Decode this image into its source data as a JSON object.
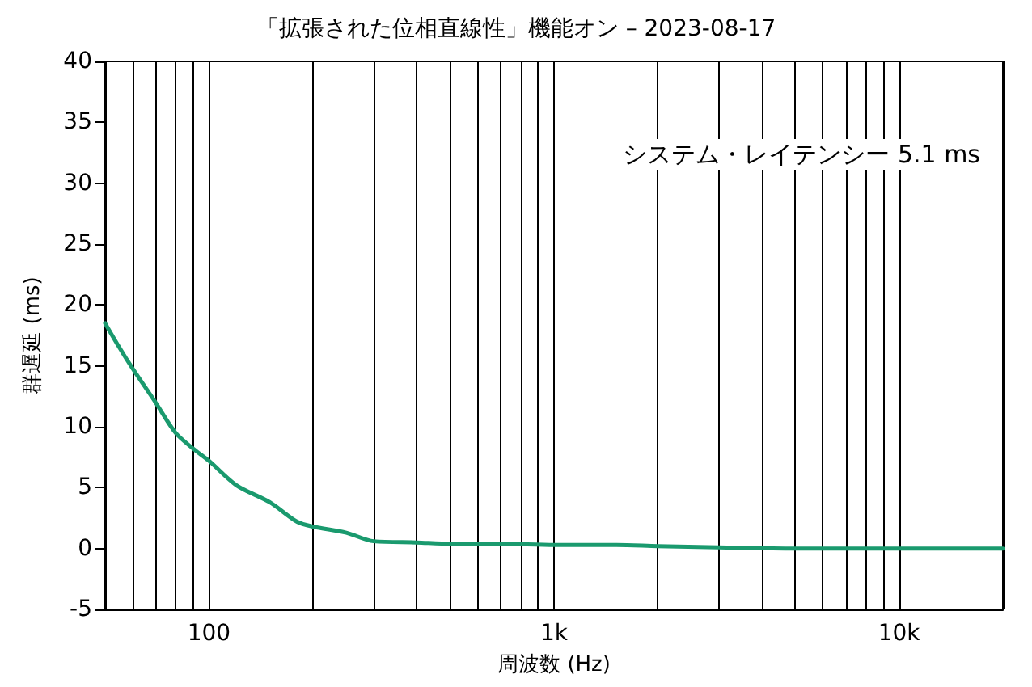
{
  "chart_data": {
    "type": "line",
    "title": "「拡張された位相直線性」機能オン – 2023-08-17",
    "xlabel": "周波数 (Hz)",
    "ylabel": "群遅延 (ms)",
    "annotations": [
      "システム・レイテンシー 5.1 ms"
    ],
    "x": [
      50,
      55,
      60,
      70,
      80,
      90,
      100,
      120,
      150,
      180,
      200,
      250,
      300,
      400,
      500,
      700,
      1000,
      1500,
      2000,
      3000,
      5000,
      7000,
      10000,
      15000,
      20000
    ],
    "series": [
      {
        "color": "#1a9a6e",
        "values": [
          18.5,
          16.5,
          14.8,
          12,
          9.5,
          8.2,
          7.2,
          5.2,
          3.8,
          2.2,
          1.8,
          1.3,
          0.6,
          0.5,
          0.4,
          0.4,
          0.3,
          0.3,
          0.2,
          0.1,
          0,
          0,
          0,
          0,
          0
        ]
      }
    ],
    "log": "x",
    "xlim": [
      50,
      20000
    ],
    "ylim": [
      -5,
      40
    ],
    "xticks": [
      {
        "value": 50,
        "label": null
      },
      {
        "value": 60,
        "label": null
      },
      {
        "value": 70,
        "label": null
      },
      {
        "value": 80,
        "label": null
      },
      {
        "value": 90,
        "label": null
      },
      {
        "value": 100,
        "label": "100"
      },
      {
        "value": 200,
        "label": null
      },
      {
        "value": 300,
        "label": null
      },
      {
        "value": 400,
        "label": null
      },
      {
        "value": 500,
        "label": null
      },
      {
        "value": 600,
        "label": null
      },
      {
        "value": 700,
        "label": null
      },
      {
        "value": 800,
        "label": null
      },
      {
        "value": 900,
        "label": null
      },
      {
        "value": 1000,
        "label": "1k"
      },
      {
        "value": 2000,
        "label": null
      },
      {
        "value": 3000,
        "label": null
      },
      {
        "value": 4000,
        "label": null
      },
      {
        "value": 5000,
        "label": null
      },
      {
        "value": 6000,
        "label": null
      },
      {
        "value": 7000,
        "label": null
      },
      {
        "value": 8000,
        "label": null
      },
      {
        "value": 9000,
        "label": null
      },
      {
        "value": 10000,
        "label": "10k"
      },
      {
        "value": 20000,
        "label": null
      }
    ],
    "yticks": [
      -5,
      0,
      5,
      10,
      15,
      20,
      25,
      30,
      35,
      40
    ],
    "grid": "x",
    "marker": "none",
    "line_style": "solid"
  }
}
